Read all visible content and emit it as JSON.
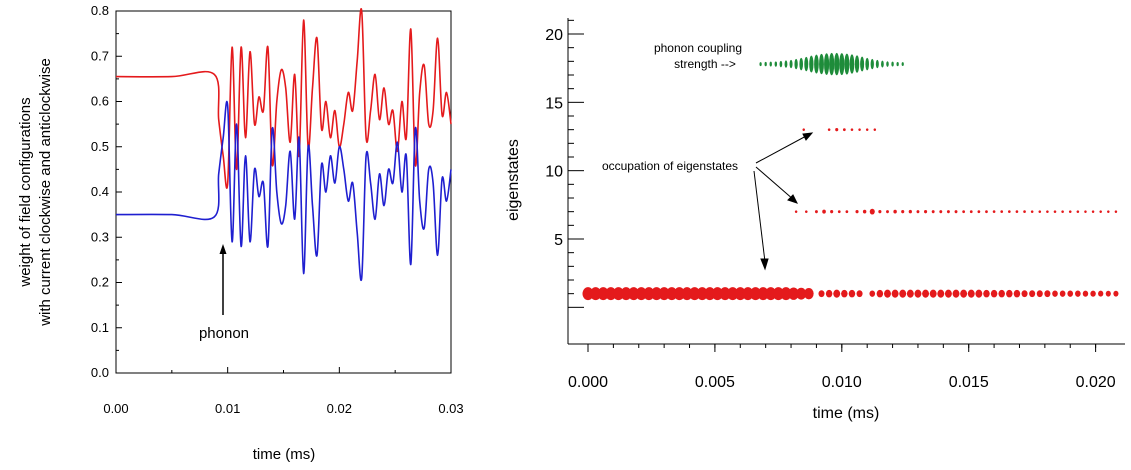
{
  "chart_data": [
    {
      "type": "line",
      "title": "",
      "xlabel": "time (ms)",
      "ylabel_lines": [
        "weight of field configurations",
        "with current clockwise and anticlockwise"
      ],
      "xlim": [
        0.0,
        0.03
      ],
      "ylim": [
        0.0,
        0.8
      ],
      "xticks": [
        "0.00",
        "0.01",
        "0.02",
        "0.03"
      ],
      "yticks": [
        "0.0",
        "0.1",
        "0.2",
        "0.3",
        "0.4",
        "0.5",
        "0.6",
        "0.7",
        "0.8"
      ],
      "grid": false,
      "annotations": [
        {
          "text": "phonon",
          "x": 0.0098,
          "y": 0.22
        }
      ],
      "series": [
        {
          "color": "#e41a1c",
          "x": [
            0.0,
            0.005,
            0.0088,
            0.0092,
            0.0096,
            0.01,
            0.0104,
            0.0108,
            0.0112,
            0.0116,
            0.012,
            0.0124,
            0.0128,
            0.0132,
            0.0136,
            0.014,
            0.0144,
            0.0148,
            0.0152,
            0.0156,
            0.016,
            0.0164,
            0.0168,
            0.0172,
            0.0176,
            0.018,
            0.0184,
            0.0188,
            0.0192,
            0.0196,
            0.02,
            0.0204,
            0.0208,
            0.0212,
            0.0216,
            0.022,
            0.0224,
            0.0228,
            0.0232,
            0.0236,
            0.024,
            0.0244,
            0.0248,
            0.0252,
            0.0256,
            0.026,
            0.0264,
            0.0268,
            0.0272,
            0.0276,
            0.028,
            0.0284,
            0.0288,
            0.0292,
            0.0296,
            0.03
          ],
          "y": [
            0.655,
            0.655,
            0.66,
            0.56,
            0.48,
            0.42,
            0.72,
            0.45,
            0.72,
            0.52,
            0.71,
            0.55,
            0.61,
            0.58,
            0.72,
            0.46,
            0.6,
            0.67,
            0.63,
            0.51,
            0.66,
            0.48,
            0.78,
            0.5,
            0.63,
            0.74,
            0.54,
            0.6,
            0.52,
            0.58,
            0.5,
            0.55,
            0.62,
            0.58,
            0.69,
            0.8,
            0.52,
            0.58,
            0.66,
            0.56,
            0.63,
            0.55,
            0.58,
            0.49,
            0.6,
            0.52,
            0.76,
            0.46,
            0.62,
            0.68,
            0.55,
            0.58,
            0.74,
            0.57,
            0.62,
            0.55
          ]
        },
        {
          "color": "#1f1fd0",
          "x": [
            0.0,
            0.005,
            0.0088,
            0.0092,
            0.0096,
            0.01,
            0.0104,
            0.0108,
            0.0112,
            0.0116,
            0.012,
            0.0124,
            0.0128,
            0.0132,
            0.0136,
            0.014,
            0.0144,
            0.0148,
            0.0152,
            0.0156,
            0.016,
            0.0164,
            0.0168,
            0.0172,
            0.0176,
            0.018,
            0.0184,
            0.0188,
            0.0192,
            0.0196,
            0.02,
            0.0204,
            0.0208,
            0.0212,
            0.0216,
            0.022,
            0.0224,
            0.0228,
            0.0232,
            0.0236,
            0.024,
            0.0244,
            0.0248,
            0.0252,
            0.0256,
            0.026,
            0.0264,
            0.0268,
            0.0272,
            0.0276,
            0.028,
            0.0284,
            0.0288,
            0.0292,
            0.0296,
            0.03
          ],
          "y": [
            0.35,
            0.35,
            0.345,
            0.44,
            0.52,
            0.59,
            0.29,
            0.55,
            0.28,
            0.48,
            0.29,
            0.45,
            0.39,
            0.42,
            0.28,
            0.54,
            0.4,
            0.33,
            0.37,
            0.49,
            0.34,
            0.52,
            0.22,
            0.5,
            0.37,
            0.26,
            0.46,
            0.4,
            0.48,
            0.42,
            0.5,
            0.45,
            0.38,
            0.42,
            0.31,
            0.21,
            0.48,
            0.42,
            0.34,
            0.44,
            0.37,
            0.45,
            0.42,
            0.51,
            0.4,
            0.48,
            0.24,
            0.54,
            0.38,
            0.32,
            0.45,
            0.42,
            0.26,
            0.43,
            0.38,
            0.45
          ]
        }
      ]
    },
    {
      "type": "scatter",
      "title": "",
      "xlabel": "time (ms)",
      "ylabel": "eigenstates",
      "xlim": [
        0.0,
        0.021
      ],
      "ylim": [
        -3,
        22
      ],
      "xticks": [
        "0.000",
        "0.005",
        "0.010",
        "0.015",
        "0.020"
      ],
      "yticks": [
        "5",
        "10",
        "15",
        "20"
      ],
      "grid": false,
      "annotations": [
        {
          "text": "phonon coupling",
          "line": 1
        },
        {
          "text": "strength -->",
          "line": 2
        },
        {
          "text": "occupation of eigenstates",
          "line": 1
        }
      ],
      "series": [
        {
          "color": "#1e8c3a",
          "level": 17.8,
          "x": [
            0.0068,
            0.007,
            0.0072,
            0.0074,
            0.0076,
            0.0078,
            0.008,
            0.0082,
            0.0084,
            0.0086,
            0.0088,
            0.009,
            0.0092,
            0.0094,
            0.0096,
            0.0098,
            0.01,
            0.0102,
            0.0104,
            0.0106,
            0.0108,
            0.011,
            0.0112,
            0.0114,
            0.0116,
            0.0118,
            0.012,
            0.0122,
            0.0124
          ],
          "size": [
            0.08,
            0.1,
            0.12,
            0.15,
            0.2,
            0.25,
            0.3,
            0.4,
            0.5,
            0.6,
            0.72,
            0.82,
            0.9,
            0.96,
            1.0,
            1.0,
            0.98,
            0.93,
            0.85,
            0.75,
            0.62,
            0.5,
            0.4,
            0.3,
            0.22,
            0.16,
            0.12,
            0.09,
            0.07
          ]
        },
        {
          "color": "#e41a1c",
          "level": 13.0,
          "x": [
            0.0085,
            0.0095,
            0.0098,
            0.0101,
            0.0104,
            0.0107,
            0.011,
            0.0113
          ],
          "size": [
            0.05,
            0.06,
            0.12,
            0.08,
            0.06,
            0.05,
            0.05,
            0.05
          ]
        },
        {
          "color": "#e41a1c",
          "level": 7.0,
          "x": [
            0.0082,
            0.0086,
            0.009,
            0.0093,
            0.0096,
            0.0099,
            0.0102,
            0.0106,
            0.0109,
            0.0112,
            0.0115,
            0.0118,
            0.0121,
            0.0124,
            0.0127,
            0.013,
            0.0133,
            0.0136,
            0.0139,
            0.0142,
            0.0145,
            0.0148,
            0.0151,
            0.0154,
            0.0157,
            0.016,
            0.0163,
            0.0166,
            0.0169,
            0.0172,
            0.0175,
            0.0178,
            0.0181,
            0.0184,
            0.0187,
            0.019,
            0.0193,
            0.0196,
            0.0199,
            0.0202,
            0.0205,
            0.0208
          ],
          "size": [
            0.05,
            0.06,
            0.1,
            0.18,
            0.12,
            0.08,
            0.08,
            0.12,
            0.16,
            0.34,
            0.12,
            0.1,
            0.16,
            0.12,
            0.14,
            0.1,
            0.12,
            0.1,
            0.1,
            0.1,
            0.1,
            0.08,
            0.08,
            0.08,
            0.08,
            0.07,
            0.07,
            0.07,
            0.07,
            0.07,
            0.06,
            0.06,
            0.06,
            0.06,
            0.06,
            0.06,
            0.06,
            0.05,
            0.05,
            0.05,
            0.05,
            0.05
          ]
        },
        {
          "color": "#e41a1c",
          "level": 1.0,
          "x": [
            0.0,
            0.0003,
            0.0006,
            0.0009,
            0.0012,
            0.0015,
            0.0018,
            0.0021,
            0.0024,
            0.0027,
            0.003,
            0.0033,
            0.0036,
            0.0039,
            0.0042,
            0.0045,
            0.0048,
            0.0051,
            0.0054,
            0.0057,
            0.006,
            0.0063,
            0.0066,
            0.0069,
            0.0072,
            0.0075,
            0.0078,
            0.0081,
            0.0084,
            0.0087,
            0.0092,
            0.0095,
            0.0098,
            0.0101,
            0.0104,
            0.0107,
            0.0112,
            0.0115,
            0.0118,
            0.0121,
            0.0124,
            0.0127,
            0.013,
            0.0133,
            0.0136,
            0.0139,
            0.0142,
            0.0145,
            0.0148,
            0.0151,
            0.0154,
            0.0157,
            0.016,
            0.0163,
            0.0166,
            0.0169,
            0.0172,
            0.0175,
            0.0178,
            0.0181,
            0.0184,
            0.0187,
            0.019,
            0.0193,
            0.0196,
            0.0199,
            0.0202,
            0.0205,
            0.0208
          ],
          "size": [
            1.0,
            1.0,
            1.0,
            1.0,
            1.0,
            1.0,
            1.0,
            1.0,
            1.0,
            1.0,
            1.0,
            1.0,
            1.0,
            1.0,
            1.0,
            1.0,
            1.0,
            1.0,
            1.0,
            1.0,
            1.0,
            1.0,
            1.0,
            1.0,
            1.0,
            1.0,
            1.0,
            0.95,
            0.9,
            0.85,
            0.45,
            0.5,
            0.55,
            0.5,
            0.5,
            0.45,
            0.4,
            0.5,
            0.55,
            0.55,
            0.55,
            0.55,
            0.55,
            0.55,
            0.55,
            0.55,
            0.55,
            0.55,
            0.55,
            0.55,
            0.55,
            0.5,
            0.5,
            0.5,
            0.5,
            0.5,
            0.45,
            0.45,
            0.45,
            0.45,
            0.4,
            0.4,
            0.4,
            0.4,
            0.38,
            0.38,
            0.36,
            0.35,
            0.35
          ]
        }
      ]
    }
  ]
}
